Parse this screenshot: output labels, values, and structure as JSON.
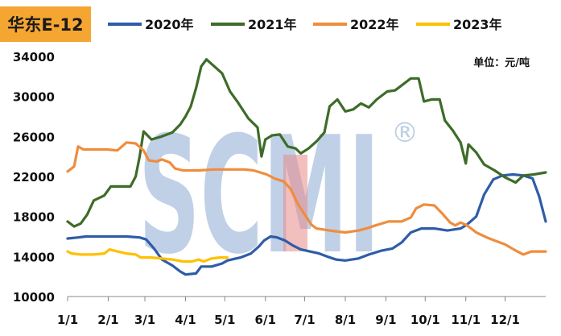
{
  "title": "华东E-12",
  "chart_data": {
    "type": "line",
    "unit_label": "单位：元/吨",
    "watermark": "SCMI",
    "watermark_mark": "®",
    "ylim": [
      10000,
      34000
    ],
    "yticks": [
      10000,
      14000,
      18000,
      22000,
      26000,
      30000,
      34000
    ],
    "xticks": [
      {
        "label": "1/1",
        "day": 0
      },
      {
        "label": "2/1",
        "day": 31
      },
      {
        "label": "3/1",
        "day": 59
      },
      {
        "label": "4/1",
        "day": 90
      },
      {
        "label": "5/1",
        "day": 120
      },
      {
        "label": "6/1",
        "day": 151
      },
      {
        "label": "7/1",
        "day": 181
      },
      {
        "label": "8/1",
        "day": 212
      },
      {
        "label": "9/1",
        "day": 243
      },
      {
        "label": "10/1",
        "day": 273
      },
      {
        "label": "11/1",
        "day": 304
      },
      {
        "label": "12/1",
        "day": 334
      }
    ],
    "x_max_day": 365,
    "series": [
      {
        "name": "2020年",
        "color": "#2e5ca8",
        "points": [
          [
            0,
            15800
          ],
          [
            8,
            15900
          ],
          [
            14,
            16000
          ],
          [
            25,
            16000
          ],
          [
            45,
            16000
          ],
          [
            55,
            15900
          ],
          [
            60,
            15700
          ],
          [
            66,
            14800
          ],
          [
            72,
            13700
          ],
          [
            80,
            13100
          ],
          [
            86,
            12500
          ],
          [
            90,
            12200
          ],
          [
            98,
            12300
          ],
          [
            102,
            13000
          ],
          [
            110,
            13000
          ],
          [
            118,
            13300
          ],
          [
            122,
            13600
          ],
          [
            132,
            13900
          ],
          [
            140,
            14300
          ],
          [
            146,
            15000
          ],
          [
            150,
            15600
          ],
          [
            155,
            16000
          ],
          [
            160,
            15900
          ],
          [
            166,
            15600
          ],
          [
            172,
            15100
          ],
          [
            178,
            14700
          ],
          [
            185,
            14500
          ],
          [
            192,
            14300
          ],
          [
            198,
            14000
          ],
          [
            205,
            13700
          ],
          [
            212,
            13600
          ],
          [
            222,
            13800
          ],
          [
            230,
            14200
          ],
          [
            240,
            14600
          ],
          [
            248,
            14800
          ],
          [
            255,
            15400
          ],
          [
            262,
            16400
          ],
          [
            270,
            16800
          ],
          [
            280,
            16800
          ],
          [
            290,
            16600
          ],
          [
            300,
            16800
          ],
          [
            305,
            17200
          ],
          [
            312,
            18000
          ],
          [
            318,
            20200
          ],
          [
            325,
            21700
          ],
          [
            332,
            22100
          ],
          [
            340,
            22200
          ],
          [
            348,
            22100
          ],
          [
            355,
            21800
          ],
          [
            360,
            20000
          ],
          [
            365,
            17500
          ]
        ]
      },
      {
        "name": "2021年",
        "color": "#3d6c29",
        "points": [
          [
            0,
            17500
          ],
          [
            5,
            17000
          ],
          [
            10,
            17300
          ],
          [
            15,
            18200
          ],
          [
            20,
            19600
          ],
          [
            28,
            20100
          ],
          [
            33,
            21000
          ],
          [
            40,
            21000
          ],
          [
            48,
            21000
          ],
          [
            52,
            22000
          ],
          [
            55,
            24000
          ],
          [
            58,
            26500
          ],
          [
            64,
            25700
          ],
          [
            72,
            26000
          ],
          [
            80,
            26400
          ],
          [
            86,
            27200
          ],
          [
            90,
            28000
          ],
          [
            94,
            29000
          ],
          [
            98,
            30800
          ],
          [
            102,
            33000
          ],
          [
            106,
            33700
          ],
          [
            112,
            33000
          ],
          [
            118,
            32300
          ],
          [
            124,
            30500
          ],
          [
            130,
            29400
          ],
          [
            138,
            27800
          ],
          [
            145,
            26900
          ],
          [
            148,
            24000
          ],
          [
            151,
            25700
          ],
          [
            156,
            26100
          ],
          [
            162,
            26200
          ],
          [
            168,
            25000
          ],
          [
            174,
            24800
          ],
          [
            178,
            24300
          ],
          [
            184,
            24800
          ],
          [
            190,
            25500
          ],
          [
            196,
            26400
          ],
          [
            200,
            29000
          ],
          [
            206,
            29700
          ],
          [
            212,
            28500
          ],
          [
            218,
            28700
          ],
          [
            224,
            29300
          ],
          [
            230,
            28900
          ],
          [
            236,
            29700
          ],
          [
            244,
            30500
          ],
          [
            250,
            30600
          ],
          [
            256,
            31200
          ],
          [
            262,
            31800
          ],
          [
            268,
            31800
          ],
          [
            272,
            29500
          ],
          [
            278,
            29700
          ],
          [
            284,
            29700
          ],
          [
            288,
            27600
          ],
          [
            294,
            26600
          ],
          [
            300,
            25400
          ],
          [
            304,
            23300
          ],
          [
            306,
            25200
          ],
          [
            312,
            24400
          ],
          [
            318,
            23200
          ],
          [
            326,
            22600
          ],
          [
            334,
            21900
          ],
          [
            342,
            21400
          ],
          [
            348,
            22100
          ],
          [
            356,
            22200
          ],
          [
            365,
            22400
          ]
        ]
      },
      {
        "name": "2022年",
        "color": "#ef8d3d",
        "points": [
          [
            0,
            22500
          ],
          [
            5,
            23000
          ],
          [
            8,
            25000
          ],
          [
            12,
            24700
          ],
          [
            20,
            24700
          ],
          [
            30,
            24700
          ],
          [
            38,
            24600
          ],
          [
            45,
            25400
          ],
          [
            52,
            25300
          ],
          [
            58,
            24600
          ],
          [
            62,
            23600
          ],
          [
            68,
            23500
          ],
          [
            72,
            23700
          ],
          [
            78,
            23400
          ],
          [
            82,
            22800
          ],
          [
            88,
            22600
          ],
          [
            100,
            22600
          ],
          [
            112,
            22700
          ],
          [
            125,
            22700
          ],
          [
            135,
            22700
          ],
          [
            142,
            22600
          ],
          [
            152,
            22200
          ],
          [
            158,
            21800
          ],
          [
            165,
            21500
          ],
          [
            170,
            20800
          ],
          [
            176,
            19200
          ],
          [
            182,
            18000
          ],
          [
            186,
            17200
          ],
          [
            190,
            16800
          ],
          [
            200,
            16600
          ],
          [
            212,
            16400
          ],
          [
            222,
            16600
          ],
          [
            228,
            16800
          ],
          [
            235,
            17100
          ],
          [
            245,
            17500
          ],
          [
            255,
            17500
          ],
          [
            262,
            17900
          ],
          [
            266,
            18800
          ],
          [
            272,
            19200
          ],
          [
            280,
            19100
          ],
          [
            286,
            18300
          ],
          [
            292,
            17400
          ],
          [
            296,
            17100
          ],
          [
            300,
            17400
          ],
          [
            305,
            17100
          ],
          [
            312,
            16400
          ],
          [
            320,
            15900
          ],
          [
            326,
            15600
          ],
          [
            334,
            15200
          ],
          [
            342,
            14600
          ],
          [
            348,
            14200
          ],
          [
            354,
            14500
          ],
          [
            365,
            14500
          ]
        ]
      },
      {
        "name": "2023年",
        "color": "#ffc000",
        "points": [
          [
            0,
            14500
          ],
          [
            3,
            14300
          ],
          [
            10,
            14200
          ],
          [
            20,
            14200
          ],
          [
            28,
            14300
          ],
          [
            32,
            14700
          ],
          [
            38,
            14500
          ],
          [
            45,
            14300
          ],
          [
            52,
            14200
          ],
          [
            56,
            13900
          ],
          [
            64,
            13900
          ],
          [
            72,
            13800
          ],
          [
            80,
            13700
          ],
          [
            88,
            13500
          ],
          [
            95,
            13500
          ],
          [
            100,
            13700
          ],
          [
            104,
            13500
          ],
          [
            110,
            13800
          ],
          [
            116,
            13900
          ],
          [
            122,
            13900
          ]
        ]
      }
    ]
  }
}
